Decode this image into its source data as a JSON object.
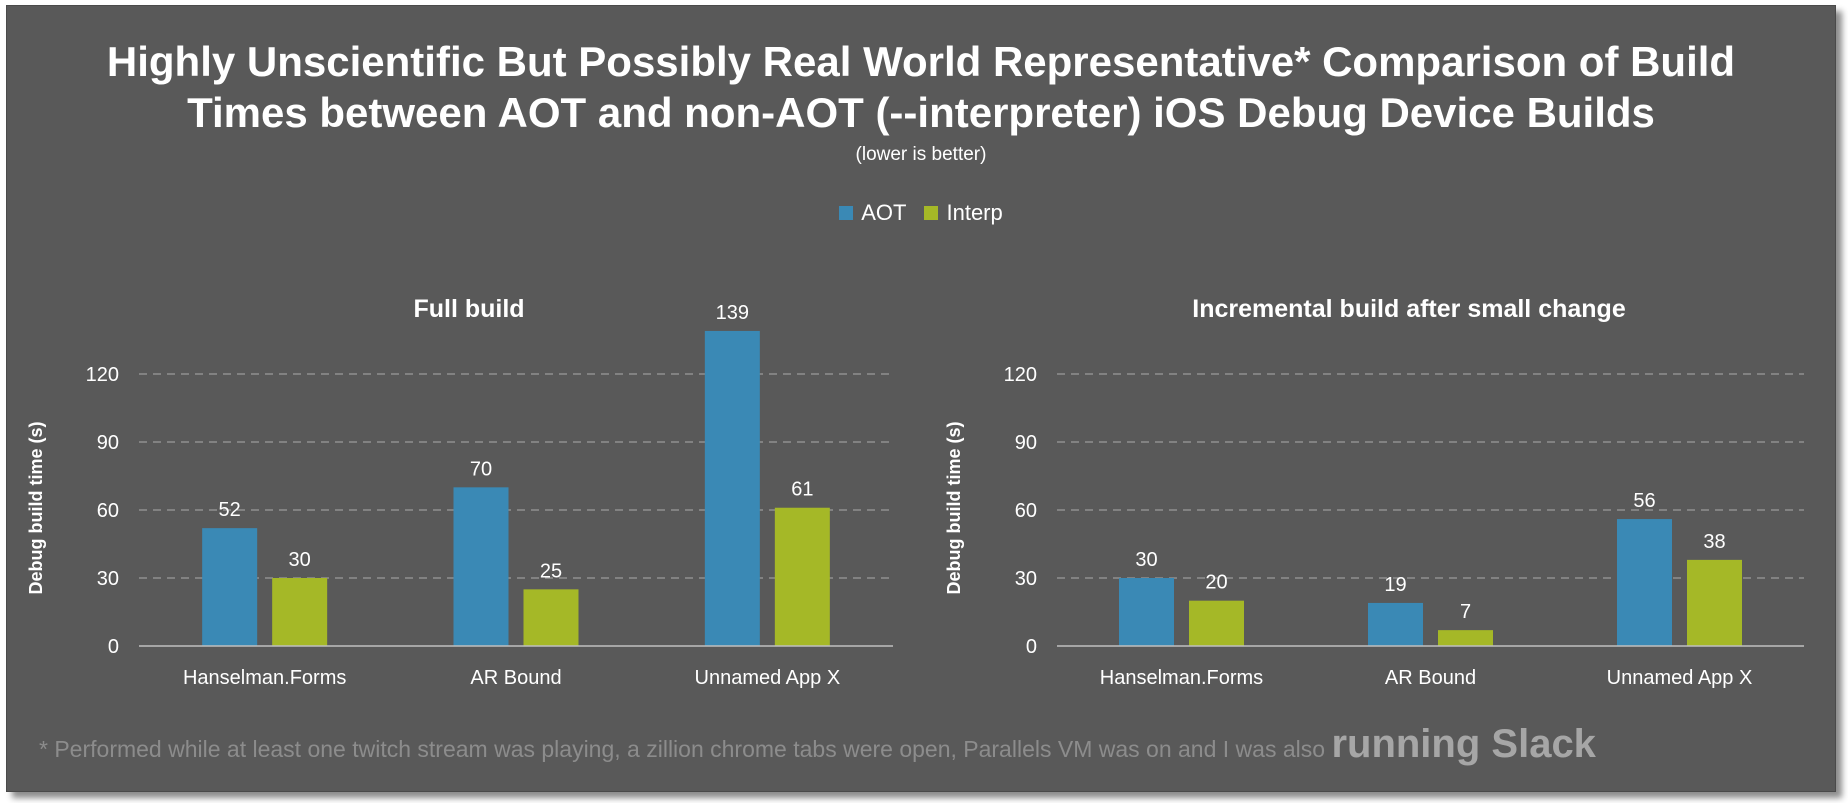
{
  "title_line1": "Highly Unscientific But Possibly Real World Representative* Comparison of Build",
  "title_line2": "Times between AOT and non-AOT (--interpreter) iOS Debug Device Builds",
  "subtitle": "(lower is better)",
  "legend": [
    {
      "name": "AOT",
      "color": "#3a89b5"
    },
    {
      "name": "Interp",
      "color": "#a5b827"
    }
  ],
  "footnote": "* Performed while at least one twitch stream was playing, a zillion chrome tabs were open, Parallels VM was on and I was also ",
  "footnote_emphasis": "running Slack",
  "chart_data": [
    {
      "type": "bar",
      "title": "Full build",
      "ylabel": "Debug build time (s)",
      "categories": [
        "Hanselman.Forms",
        "AR Bound",
        "Unnamed App X"
      ],
      "series": [
        {
          "name": "AOT",
          "values": [
            52,
            70,
            139
          ],
          "color": "#3a89b5"
        },
        {
          "name": "Interp",
          "values": [
            30,
            25,
            61
          ],
          "color": "#a5b827"
        }
      ],
      "yticks": [
        0,
        30,
        60,
        90,
        120
      ],
      "ylim": [
        0,
        139
      ],
      "grid": true,
      "legend": "top-center"
    },
    {
      "type": "bar",
      "title": "Incremental build after small change",
      "ylabel": "Debug build time (s)",
      "categories": [
        "Hanselman.Forms",
        "AR Bound",
        "Unnamed App X"
      ],
      "series": [
        {
          "name": "AOT",
          "values": [
            30,
            19,
            56
          ],
          "color": "#3a89b5"
        },
        {
          "name": "Interp",
          "values": [
            20,
            7,
            38
          ],
          "color": "#a5b827"
        }
      ],
      "yticks": [
        0,
        30,
        60,
        90,
        120
      ],
      "ylim": [
        0,
        139
      ],
      "grid": true,
      "legend": "top-center"
    }
  ]
}
